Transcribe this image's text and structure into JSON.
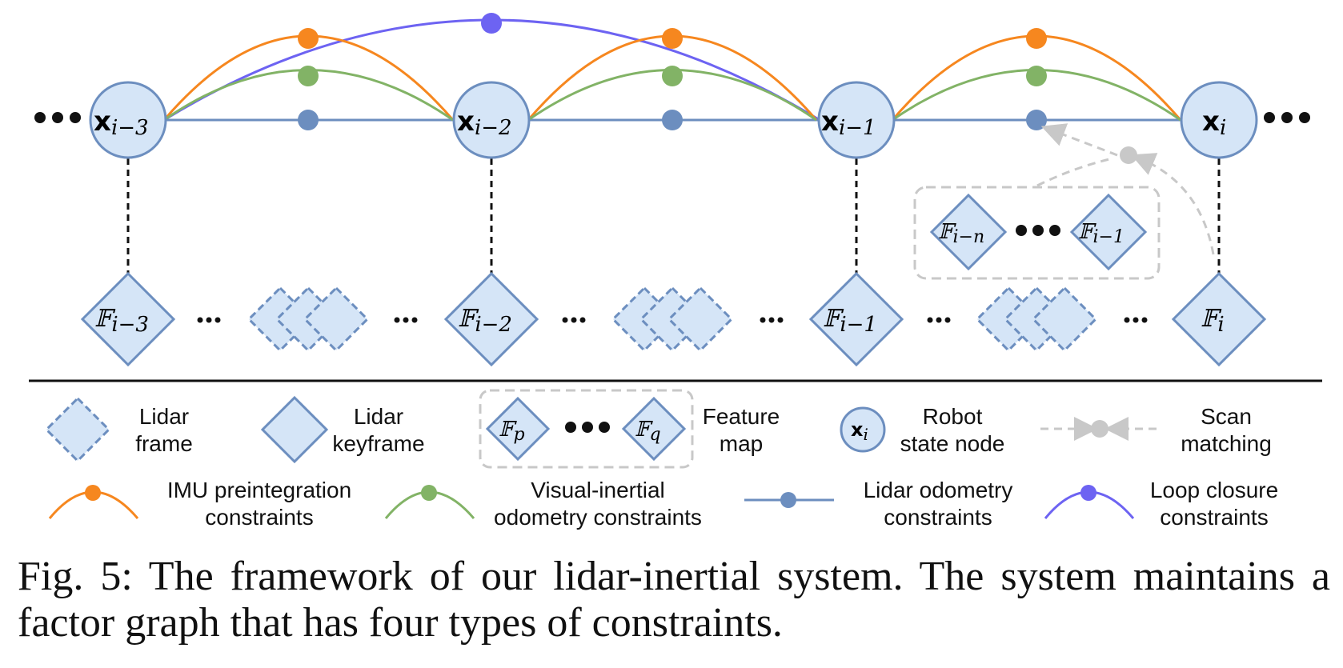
{
  "colors": {
    "node_fill": "#d5e5f7",
    "node_stroke": "#6c8ebf",
    "imu": "#f6871f",
    "visual": "#82b366",
    "lidar": "#6c8ebf",
    "loop": "#6d63f2",
    "scan": "#c8c8c8"
  },
  "nodes": [
    {
      "base": "x",
      "sub": "i−3",
      "keyframe": "F",
      "kf_sub": "i−3"
    },
    {
      "base": "x",
      "sub": "i−2",
      "keyframe": "F",
      "kf_sub": "i−2"
    },
    {
      "base": "x",
      "sub": "i−1",
      "keyframe": "F",
      "kf_sub": "i−1"
    },
    {
      "base": "x",
      "sub": "i",
      "keyframe": "F",
      "kf_sub": "i"
    }
  ],
  "feature_map_top": {
    "first_sub": "i−n",
    "last_sub": "i−1"
  },
  "legend": {
    "lidar_frame": [
      "Lidar",
      "frame"
    ],
    "lidar_keyframe": [
      "Lidar",
      "keyframe"
    ],
    "feature_map": [
      "Feature",
      "map"
    ],
    "feature_map_subs": [
      "p",
      "q"
    ],
    "robot_state": [
      "Robot",
      "state node"
    ],
    "robot_state_sub": "i",
    "scan_matching": [
      "Scan",
      "matching"
    ],
    "imu": [
      "IMU preintegration",
      "constraints"
    ],
    "visual": [
      "Visual-inertial",
      "odometry constraints"
    ],
    "lidar_odom": [
      "Lidar odometry",
      "constraints"
    ],
    "loop": [
      "Loop closure",
      "constraints"
    ]
  },
  "caption": "Fig. 5: The framework of our lidar-inertial system. The system maintains a factor graph that has four types of constraints."
}
